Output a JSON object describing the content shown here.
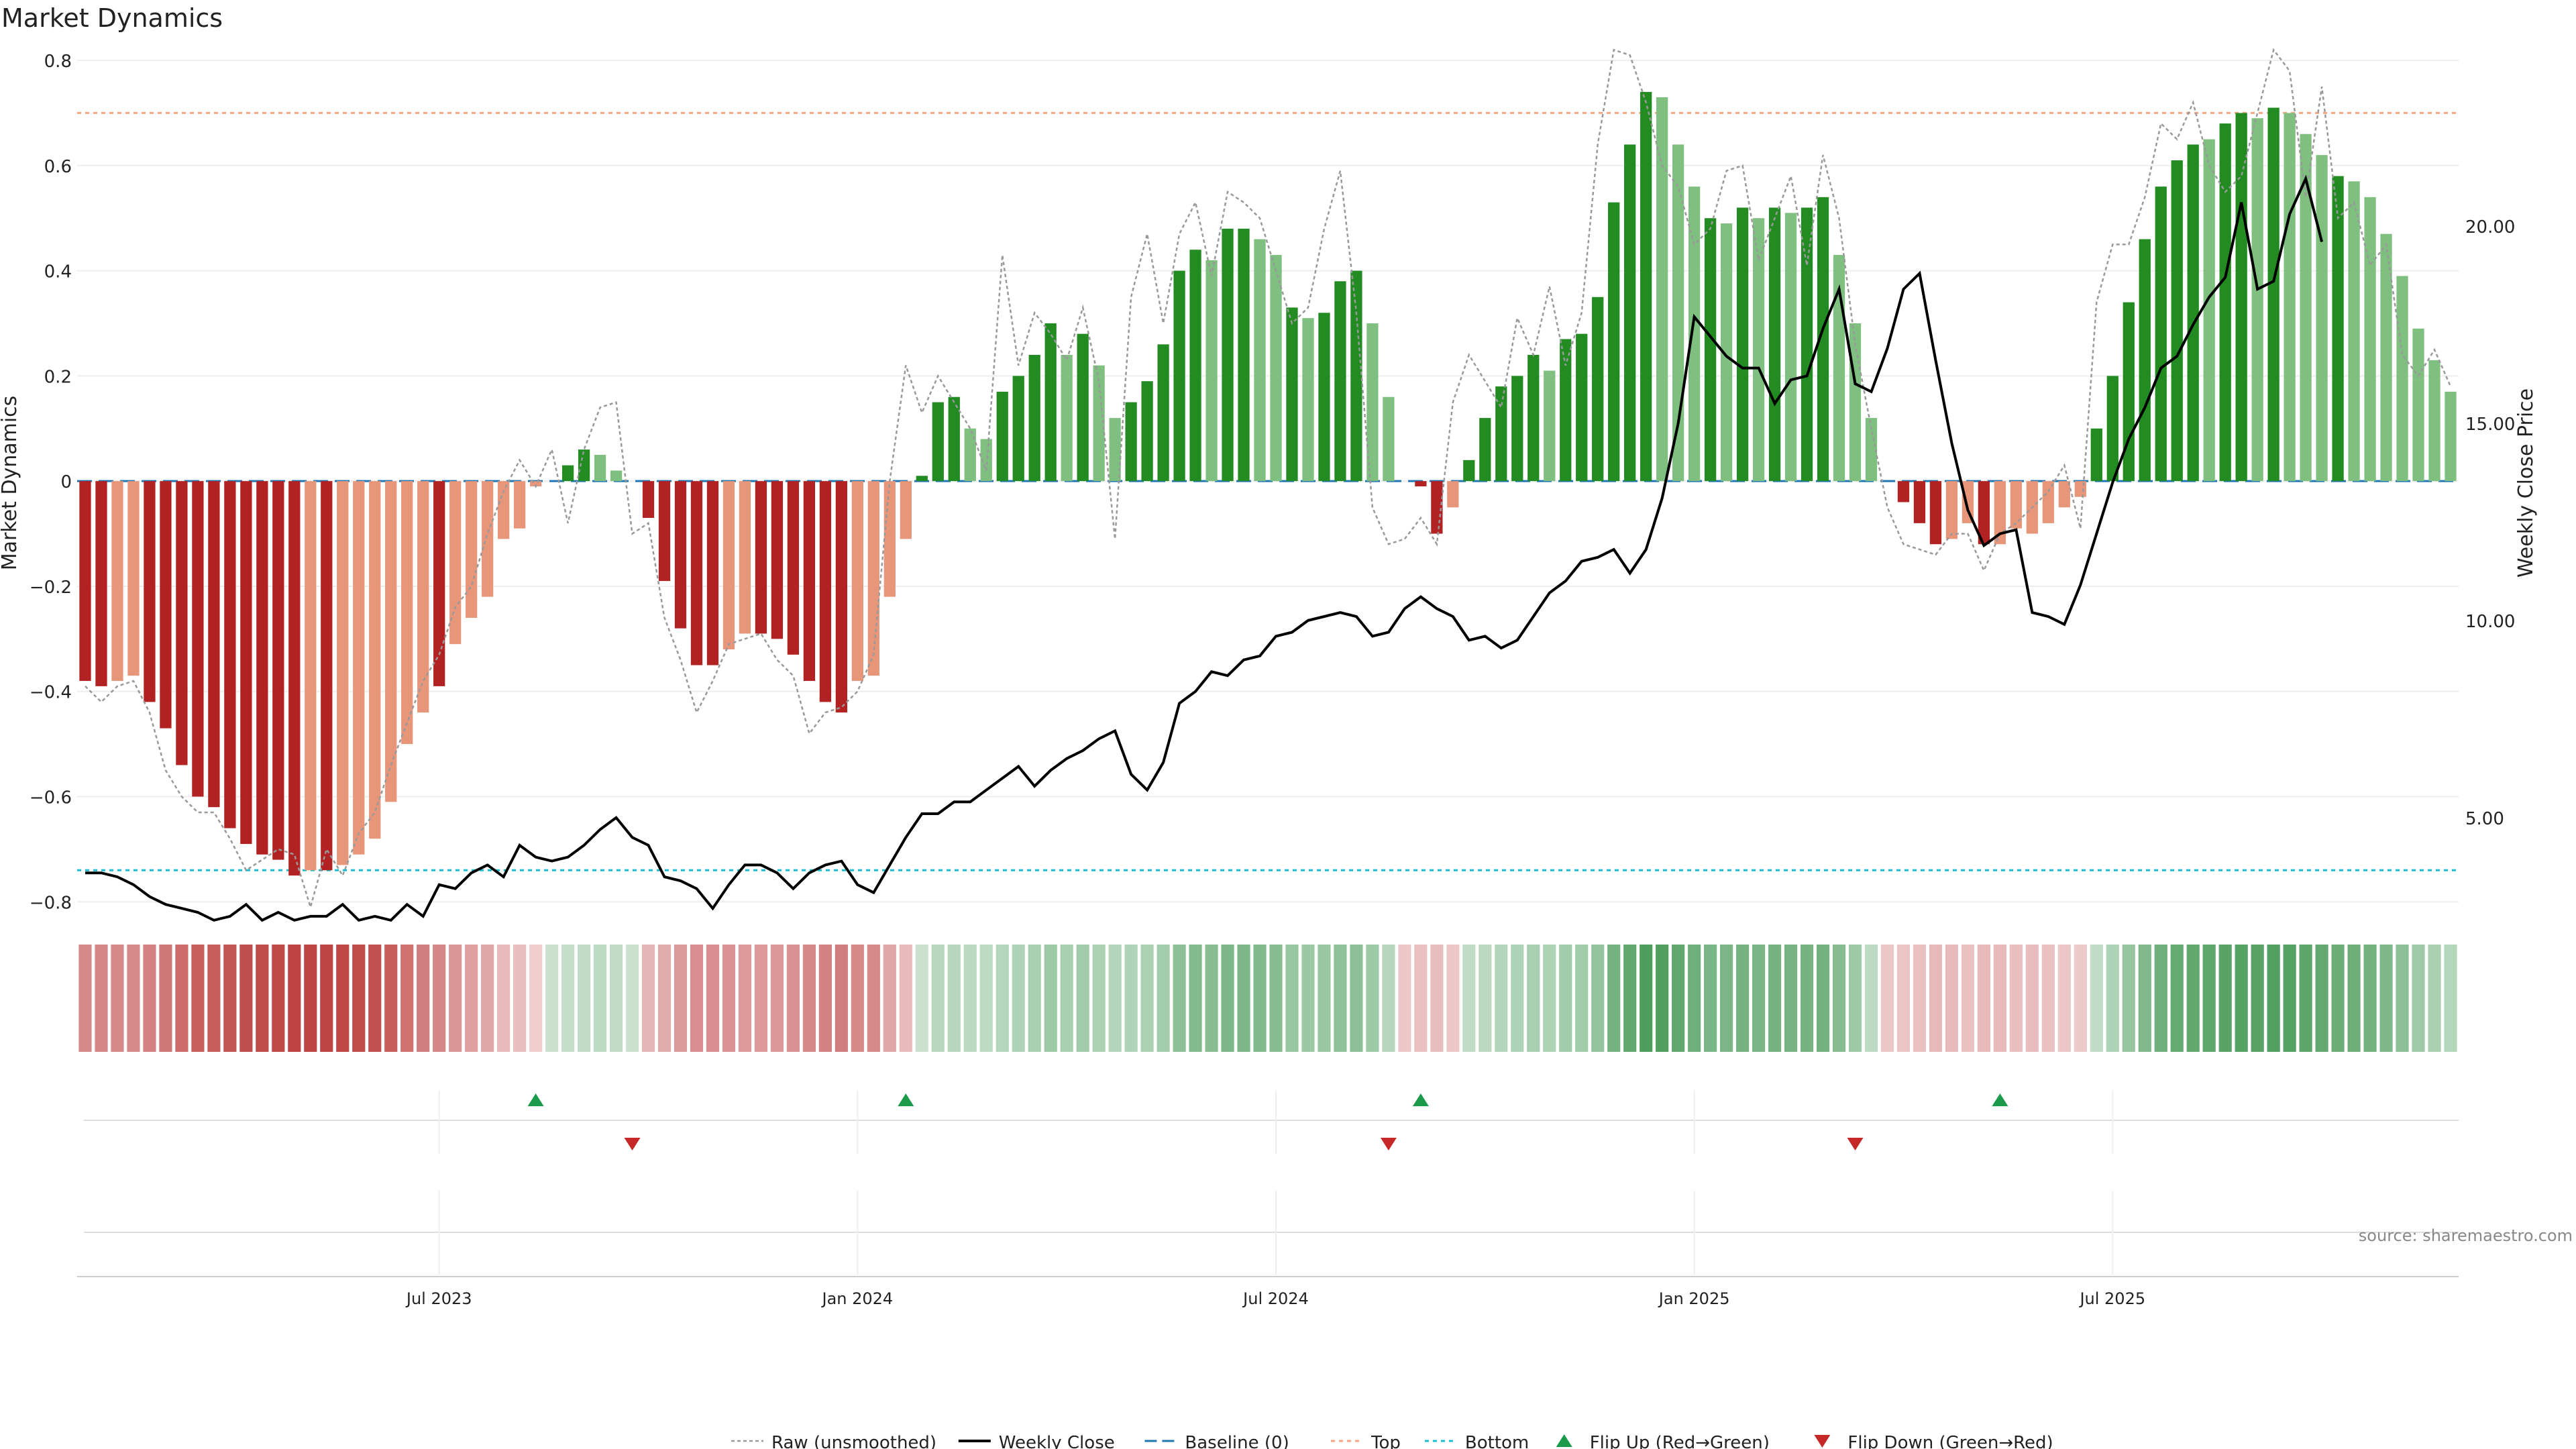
{
  "title": "Market Dynamics",
  "source": "source: sharemaestro.com",
  "colors": {
    "strong_green": "#228b22",
    "light_green": "#7fbf7f",
    "strong_red": "#b22222",
    "light_red": "#e8967a",
    "baseline": "#1f77b4",
    "top": "#f4a582",
    "bottom": "#17becf",
    "raw": "#999999",
    "close": "#000000",
    "flip_up": "#1a9a4a",
    "flip_down": "#c62828",
    "grid": "#eeeeee"
  },
  "chart_data": {
    "type": "bar",
    "title": "Market Dynamics",
    "ylabel": "Market Dynamics",
    "ylabel_right": "Weekly Close Price",
    "ylim": [
      -0.82,
      0.8
    ],
    "ylim_right": [
      2.6,
      24.2
    ],
    "y_ticks": [
      {
        "v": 0.8,
        "label": "0.8"
      },
      {
        "v": 0.6,
        "label": "0.6"
      },
      {
        "v": 0.4,
        "label": "0.4"
      },
      {
        "v": 0.2,
        "label": "0.2"
      },
      {
        "v": 0,
        "label": "0"
      },
      {
        "v": -0.2,
        "label": "−0.2"
      },
      {
        "v": -0.4,
        "label": "−0.4"
      },
      {
        "v": -0.6,
        "label": "−0.6"
      },
      {
        "v": -0.8,
        "label": "−0.8"
      }
    ],
    "y2_ticks": [
      {
        "v": 20,
        "label": "20.00"
      },
      {
        "v": 15,
        "label": "15.00"
      },
      {
        "v": 10,
        "label": "10.00"
      },
      {
        "v": 5,
        "label": "5.00"
      }
    ],
    "x_ticks": [
      {
        "week": 22,
        "label": "Jul 2023"
      },
      {
        "week": 48,
        "label": "Jan 2024"
      },
      {
        "week": 74,
        "label": "Jul 2024"
      },
      {
        "week": 100,
        "label": "Jan 2025"
      },
      {
        "week": 126,
        "label": "Jul 2025"
      }
    ],
    "top_level": 0.7,
    "bottom_level": -0.74,
    "baseline": 0,
    "momentum": [
      -0.38,
      -0.39,
      -0.38,
      -0.37,
      -0.42,
      -0.47,
      -0.54,
      -0.6,
      -0.62,
      -0.66,
      -0.69,
      -0.71,
      -0.72,
      -0.75,
      -0.74,
      -0.74,
      -0.73,
      -0.71,
      -0.68,
      -0.61,
      -0.5,
      -0.44,
      -0.39,
      -0.31,
      -0.26,
      -0.22,
      -0.11,
      -0.09,
      -0.01,
      0,
      0.03,
      0.06,
      0.05,
      0.02,
      0,
      -0.07,
      -0.19,
      -0.28,
      -0.35,
      -0.35,
      -0.32,
      -0.29,
      -0.29,
      -0.3,
      -0.33,
      -0.38,
      -0.42,
      -0.44,
      -0.38,
      -0.37,
      -0.22,
      -0.11,
      0.01,
      0.15,
      0.16,
      0.1,
      0.08,
      0.17,
      0.2,
      0.24,
      0.3,
      0.24,
      0.28,
      0.22,
      0.12,
      0.15,
      0.19,
      0.26,
      0.4,
      0.44,
      0.42,
      0.48,
      0.48,
      0.46,
      0.43,
      0.33,
      0.31,
      0.32,
      0.38,
      0.4,
      0.3,
      0.16,
      0,
      -0.01,
      -0.1,
      -0.05,
      0.04,
      0.12,
      0.18,
      0.2,
      0.24,
      0.21,
      0.27,
      0.28,
      0.35,
      0.53,
      0.64,
      0.74,
      0.73,
      0.64,
      0.56,
      0.5,
      0.49,
      0.52,
      0.5,
      0.52,
      0.51,
      0.52,
      0.54,
      0.43,
      0.3,
      0.12,
      0,
      -0.04,
      -0.08,
      -0.12,
      -0.11,
      -0.08,
      -0.12,
      -0.12,
      -0.09,
      -0.1,
      -0.08,
      -0.05,
      -0.03,
      0.1,
      0.2,
      0.34,
      0.46,
      0.56,
      0.61,
      0.64,
      0.65,
      0.68,
      0.7,
      0.69,
      0.71,
      0.7,
      0.66,
      0.62,
      0.58,
      0.57,
      0.54,
      0.47,
      0.39,
      0.29,
      0.23,
      0.17
    ],
    "bar_shade": [
      2,
      2,
      1,
      1,
      2,
      2,
      2,
      2,
      2,
      2,
      2,
      2,
      2,
      2,
      1,
      2,
      1,
      1,
      1,
      1,
      1,
      1,
      2,
      1,
      1,
      1,
      1,
      1,
      1,
      0,
      2,
      2,
      1,
      1,
      0,
      2,
      2,
      2,
      2,
      2,
      1,
      1,
      2,
      2,
      2,
      2,
      2,
      2,
      1,
      1,
      1,
      1,
      2,
      2,
      2,
      1,
      1,
      2,
      2,
      2,
      2,
      1,
      2,
      1,
      1,
      2,
      2,
      2,
      2,
      2,
      1,
      2,
      2,
      1,
      1,
      2,
      1,
      2,
      2,
      2,
      1,
      1,
      0,
      2,
      2,
      1,
      2,
      2,
      2,
      2,
      2,
      1,
      2,
      2,
      2,
      2,
      2,
      2,
      1,
      1,
      1,
      2,
      1,
      2,
      1,
      2,
      1,
      2,
      2,
      1,
      1,
      1,
      0,
      2,
      2,
      2,
      1,
      1,
      2,
      1,
      1,
      1,
      1,
      1,
      1,
      2,
      2,
      2,
      2,
      2,
      2,
      2,
      1,
      2,
      2,
      1,
      2,
      1,
      1,
      1,
      2,
      1,
      1,
      1,
      1,
      1,
      1,
      1
    ],
    "raw": [
      -0.39,
      -0.42,
      -0.39,
      -0.38,
      -0.44,
      -0.55,
      -0.6,
      -0.63,
      -0.63,
      -0.68,
      -0.74,
      -0.72,
      -0.7,
      -0.71,
      -0.81,
      -0.7,
      -0.75,
      -0.67,
      -0.63,
      -0.54,
      -0.46,
      -0.38,
      -0.33,
      -0.24,
      -0.2,
      -0.1,
      -0.02,
      0.04,
      -0.01,
      0.06,
      -0.08,
      0.06,
      0.14,
      0.15,
      -0.1,
      -0.08,
      -0.26,
      -0.34,
      -0.44,
      -0.38,
      -0.31,
      -0.3,
      -0.29,
      -0.34,
      -0.37,
      -0.48,
      -0.44,
      -0.43,
      -0.4,
      -0.33,
      0,
      0.22,
      0.13,
      0.2,
      0.15,
      0.1,
      0.02,
      0.43,
      0.22,
      0.32,
      0.28,
      0.23,
      0.33,
      0.19,
      -0.11,
      0.35,
      0.47,
      0.3,
      0.47,
      0.53,
      0.39,
      0.55,
      0.53,
      0.5,
      0.4,
      0.3,
      0.33,
      0.48,
      0.59,
      0.32,
      -0.05,
      -0.12,
      -0.11,
      -0.07,
      -0.12,
      0.15,
      0.24,
      0.19,
      0.14,
      0.31,
      0.24,
      0.37,
      0.22,
      0.32,
      0.64,
      0.82,
      0.81,
      0.72,
      0.6,
      0.56,
      0.45,
      0.48,
      0.59,
      0.6,
      0.42,
      0.5,
      0.58,
      0.41,
      0.62,
      0.5,
      0.26,
      0.1,
      -0.05,
      -0.12,
      -0.13,
      -0.14,
      -0.1,
      -0.1,
      -0.17,
      -0.1,
      -0.08,
      -0.05,
      -0.02,
      0.03,
      -0.09,
      0.34,
      0.45,
      0.45,
      0.54,
      0.68,
      0.65,
      0.72,
      0.6,
      0.55,
      0.58,
      0.7,
      0.82,
      0.78,
      0.54,
      0.75,
      0.5,
      0.53,
      0.41,
      0.45,
      0.24,
      0.2,
      0.25,
      0.18
    ],
    "close": [
      3.6,
      3.6,
      3.5,
      3.3,
      3.0,
      2.8,
      2.7,
      2.6,
      2.4,
      2.5,
      2.8,
      2.4,
      2.6,
      2.4,
      2.5,
      2.5,
      2.8,
      2.4,
      2.5,
      2.4,
      2.8,
      2.5,
      3.3,
      3.2,
      3.6,
      3.8,
      3.5,
      4.3,
      4.0,
      3.9,
      4.0,
      4.3,
      4.7,
      5.0,
      4.5,
      4.3,
      3.5,
      3.4,
      3.2,
      2.7,
      3.3,
      3.8,
      3.8,
      3.6,
      3.2,
      3.6,
      3.8,
      3.9,
      3.3,
      3.1,
      3.8,
      4.5,
      5.1,
      5.1,
      5.4,
      5.4,
      5.7,
      6.0,
      6.3,
      5.8,
      6.2,
      6.5,
      6.7,
      7.0,
      7.2,
      6.1,
      5.7,
      6.4,
      7.9,
      8.2,
      8.7,
      8.6,
      9.0,
      9.1,
      9.6,
      9.7,
      10.0,
      10.1,
      10.2,
      10.1,
      9.6,
      9.7,
      10.3,
      10.6,
      10.3,
      10.1,
      9.5,
      9.6,
      9.3,
      9.5,
      10.1,
      10.7,
      11.0,
      11.5,
      11.6,
      11.8,
      11.2,
      11.8,
      13.1,
      15.0,
      17.7,
      17.2,
      16.7,
      16.4,
      16.4,
      15.5,
      16.1,
      16.2,
      17.4,
      18.4,
      16.0,
      15.8,
      16.9,
      18.4,
      18.8,
      16.6,
      14.5,
      12.8,
      11.9,
      12.2,
      12.3,
      10.2,
      10.1,
      9.9,
      10.9,
      12.2,
      13.5,
      14.6,
      15.4,
      16.4,
      16.7,
      17.5,
      18.2,
      18.7,
      20.6,
      18.4,
      18.6,
      20.3,
      21.2,
      19.6
    ],
    "heat_strip": [
      -0.38,
      -0.39,
      -0.38,
      -0.37,
      -0.42,
      -0.47,
      -0.54,
      -0.6,
      -0.62,
      -0.66,
      -0.69,
      -0.71,
      -0.72,
      -0.75,
      -0.74,
      -0.74,
      -0.73,
      -0.71,
      -0.68,
      -0.61,
      -0.5,
      -0.44,
      -0.39,
      -0.31,
      -0.26,
      -0.22,
      -0.11,
      -0.09,
      -0.01,
      0.05,
      0.08,
      0.1,
      0.12,
      0.1,
      0.05,
      -0.14,
      -0.19,
      -0.28,
      -0.35,
      -0.35,
      -0.32,
      -0.29,
      -0.29,
      -0.3,
      -0.33,
      -0.38,
      -0.42,
      -0.44,
      -0.38,
      -0.37,
      -0.22,
      -0.11,
      0.05,
      0.15,
      0.16,
      0.14,
      0.12,
      0.17,
      0.2,
      0.24,
      0.3,
      0.24,
      0.28,
      0.22,
      0.18,
      0.2,
      0.22,
      0.26,
      0.4,
      0.44,
      0.42,
      0.48,
      0.48,
      0.46,
      0.43,
      0.33,
      0.31,
      0.32,
      0.38,
      0.4,
      0.3,
      0.16,
      -0.05,
      -0.08,
      -0.1,
      -0.05,
      0.1,
      0.14,
      0.18,
      0.2,
      0.24,
      0.21,
      0.27,
      0.28,
      0.35,
      0.53,
      0.64,
      0.74,
      0.73,
      0.64,
      0.56,
      0.5,
      0.49,
      0.52,
      0.5,
      0.52,
      0.51,
      0.52,
      0.54,
      0.43,
      0.3,
      0.12,
      -0.05,
      -0.06,
      -0.08,
      -0.12,
      -0.11,
      -0.08,
      -0.12,
      -0.12,
      -0.09,
      -0.1,
      -0.08,
      -0.05,
      -0.03,
      0.1,
      0.2,
      0.34,
      0.46,
      0.56,
      0.61,
      0.64,
      0.65,
      0.68,
      0.7,
      0.69,
      0.71,
      0.7,
      0.66,
      0.62,
      0.58,
      0.57,
      0.54,
      0.47,
      0.39,
      0.29,
      0.23,
      0.17
    ],
    "flips_up": [
      28,
      51,
      83,
      119
    ],
    "flips_down": [
      34,
      81,
      110
    ],
    "legend": [
      {
        "label": "Raw (unsmoothed)",
        "style": "raw"
      },
      {
        "label": "Weekly Close",
        "style": "close"
      },
      {
        "label": "Baseline (0)",
        "style": "baseline"
      },
      {
        "label": "Top",
        "style": "top"
      },
      {
        "label": "Bottom",
        "style": "bottom"
      },
      {
        "label": "Flip Up (Red→Green)",
        "style": "flip_up"
      },
      {
        "label": "Flip Down (Green→Red)",
        "style": "flip_down"
      }
    ]
  }
}
